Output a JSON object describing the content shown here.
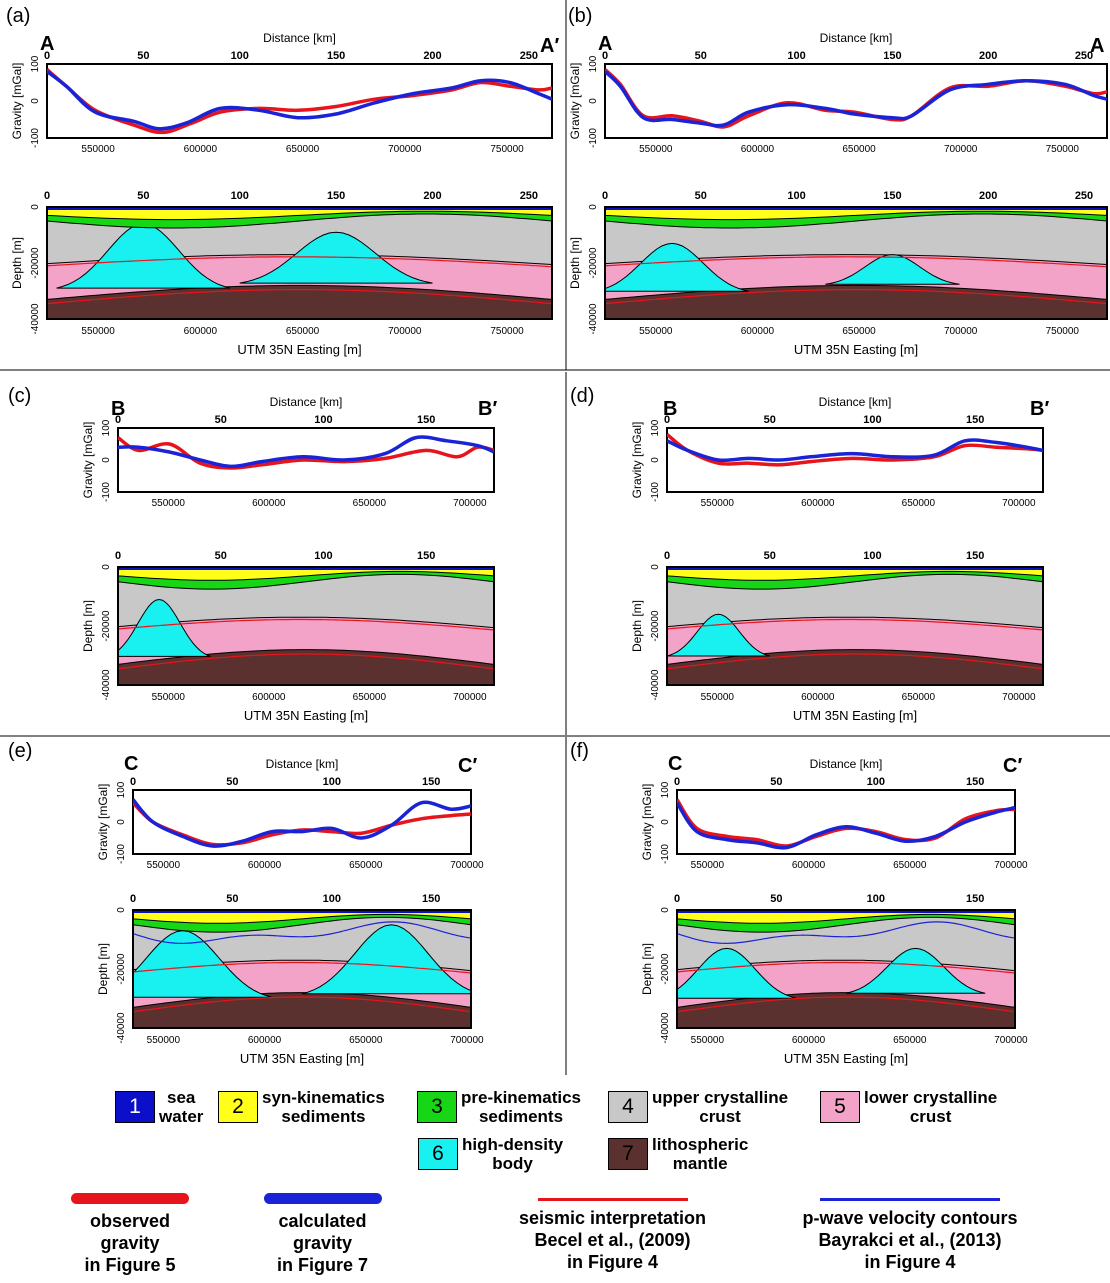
{
  "labels": {
    "distance_axis": "Distance [km]",
    "gravity_axis": "Gravity [mGal]",
    "depth_axis": "Depth [m]",
    "easting_axis": "UTM 35N Easting [m]"
  },
  "colors": {
    "observed": "#e8141b",
    "calculated": "#1a23d6",
    "seismic": "#e8141b",
    "pwave": "#1a23d6",
    "sea_water": "#0b0fc9",
    "syn_kinematics": "#ffff1a",
    "pre_kinematics": "#16d616",
    "upper_crust": "#c8c8c8",
    "lower_crust": "#f4a3c8",
    "high_density": "#19f0f0",
    "mantle": "#5b3130"
  },
  "legend": {
    "units": [
      {
        "num": "1",
        "label": "sea\nwater",
        "color": "#0b0fc9",
        "numcolor": "#ffffff"
      },
      {
        "num": "2",
        "label": "syn-kinematics\nsediments",
        "color": "#ffff1a",
        "numcolor": "#000000"
      },
      {
        "num": "3",
        "label": "pre-kinematics\nsediments",
        "color": "#16d616",
        "numcolor": "#000000"
      },
      {
        "num": "4",
        "label": "upper crystalline\ncrust",
        "color": "#c8c8c8",
        "numcolor": "#000000"
      },
      {
        "num": "5",
        "label": "lower crystalline\ncrust",
        "color": "#f4a3c8",
        "numcolor": "#000000"
      },
      {
        "num": "6",
        "label": "high-density\nbody",
        "color": "#19f0f0",
        "numcolor": "#000000"
      },
      {
        "num": "7",
        "label": "lithospheric\nmantle",
        "color": "#5b3130",
        "numcolor": "#000000"
      }
    ],
    "lines": [
      {
        "label": "observed\ngravity\nin Figure 5",
        "color": "#e8141b",
        "thick": true
      },
      {
        "label": "calculated\ngravity\nin Figure 7",
        "color": "#1a23d6",
        "thick": true
      },
      {
        "label": "seismic interpretation\nBecel et al., (2009)\nin Figure 4",
        "color": "#e8141b",
        "thick": false
      },
      {
        "label": "p-wave velocity contours\nBayrakci et al., (2013)\nin Figure 4",
        "color": "#1a23d6",
        "thick": false
      }
    ]
  },
  "chart_data": [
    {
      "panel": "(a)",
      "type": "line",
      "start_label": "A",
      "end_label": "A′",
      "distance_ticks": [
        0,
        50,
        100,
        150,
        200,
        250
      ],
      "distance_max": 262,
      "easting_min": 525000,
      "easting_max": 772000,
      "easting_ticks": [
        550000,
        600000,
        650000,
        700000,
        750000
      ],
      "gravity_ylim": [
        -100,
        100
      ],
      "gravity_ticks": [
        100,
        0,
        -100
      ],
      "depth_ticks": [
        0,
        -20000,
        -40000
      ],
      "observed": [
        [
          0,
          85
        ],
        [
          10,
          40
        ],
        [
          25,
          -25
        ],
        [
          45,
          -65
        ],
        [
          60,
          -85
        ],
        [
          75,
          -60
        ],
        [
          90,
          -30
        ],
        [
          110,
          -20
        ],
        [
          130,
          -25
        ],
        [
          150,
          -15
        ],
        [
          170,
          5
        ],
        [
          190,
          15
        ],
        [
          210,
          30
        ],
        [
          225,
          50
        ],
        [
          240,
          40
        ],
        [
          255,
          30
        ],
        [
          262,
          35
        ]
      ],
      "calculated": [
        [
          0,
          80
        ],
        [
          10,
          40
        ],
        [
          25,
          -30
        ],
        [
          45,
          -55
        ],
        [
          58,
          -75
        ],
        [
          72,
          -60
        ],
        [
          90,
          -20
        ],
        [
          110,
          -25
        ],
        [
          130,
          -45
        ],
        [
          150,
          -35
        ],
        [
          170,
          -5
        ],
        [
          190,
          20
        ],
        [
          210,
          35
        ],
        [
          225,
          55
        ],
        [
          240,
          50
        ],
        [
          255,
          20
        ],
        [
          262,
          5
        ]
      ],
      "domes": [
        {
          "center": 50,
          "halfwidth": 45,
          "top": -6000
        },
        {
          "center": 150,
          "halfwidth": 50,
          "top": -9000
        }
      ],
      "pwave": false
    },
    {
      "panel": "(b)",
      "type": "line",
      "start_label": "A",
      "end_label": "A",
      "distance_ticks": [
        0,
        50,
        100,
        150,
        200,
        250
      ],
      "distance_max": 262,
      "easting_min": 525000,
      "easting_max": 772000,
      "easting_ticks": [
        550000,
        600000,
        650000,
        700000,
        750000
      ],
      "gravity_ylim": [
        -100,
        100
      ],
      "gravity_ticks": [
        100,
        0,
        -100
      ],
      "depth_ticks": [
        0,
        -20000,
        -40000
      ],
      "observed": [
        [
          0,
          85
        ],
        [
          8,
          45
        ],
        [
          20,
          -40
        ],
        [
          35,
          -40
        ],
        [
          50,
          -55
        ],
        [
          62,
          -70
        ],
        [
          75,
          -40
        ],
        [
          95,
          -5
        ],
        [
          115,
          -25
        ],
        [
          130,
          -30
        ],
        [
          150,
          -50
        ],
        [
          160,
          -40
        ],
        [
          180,
          35
        ],
        [
          200,
          40
        ],
        [
          220,
          55
        ],
        [
          240,
          40
        ],
        [
          255,
          20
        ],
        [
          262,
          25
        ]
      ],
      "calculated": [
        [
          0,
          80
        ],
        [
          8,
          40
        ],
        [
          20,
          -45
        ],
        [
          35,
          -50
        ],
        [
          50,
          -60
        ],
        [
          62,
          -65
        ],
        [
          75,
          -30
        ],
        [
          95,
          -10
        ],
        [
          115,
          -20
        ],
        [
          130,
          -35
        ],
        [
          150,
          -45
        ],
        [
          160,
          -40
        ],
        [
          180,
          30
        ],
        [
          200,
          45
        ],
        [
          220,
          55
        ],
        [
          240,
          45
        ],
        [
          255,
          15
        ],
        [
          262,
          5
        ]
      ],
      "domes": [
        {
          "center": 35,
          "halfwidth": 40,
          "top": -13000
        },
        {
          "center": 150,
          "halfwidth": 35,
          "top": -17000
        }
      ],
      "pwave": false
    },
    {
      "panel": "(c)",
      "type": "line",
      "start_label": "B",
      "end_label": "B′",
      "distance_ticks": [
        0,
        50,
        100,
        150
      ],
      "distance_max": 183,
      "easting_min": 525000,
      "easting_max": 712000,
      "easting_ticks": [
        550000,
        600000,
        650000,
        700000
      ],
      "gravity_ylim": [
        -100,
        100
      ],
      "gravity_ticks": [
        100,
        0,
        -100
      ],
      "depth_ticks": [
        0,
        -20000,
        -40000
      ],
      "observed": [
        [
          0,
          70
        ],
        [
          10,
          30
        ],
        [
          25,
          50
        ],
        [
          40,
          -10
        ],
        [
          55,
          -25
        ],
        [
          70,
          -15
        ],
        [
          90,
          0
        ],
        [
          110,
          -5
        ],
        [
          130,
          5
        ],
        [
          150,
          30
        ],
        [
          165,
          10
        ],
        [
          175,
          40
        ],
        [
          183,
          30
        ]
      ],
      "calculated": [
        [
          0,
          40
        ],
        [
          10,
          40
        ],
        [
          25,
          25
        ],
        [
          40,
          0
        ],
        [
          55,
          -20
        ],
        [
          70,
          -5
        ],
        [
          90,
          10
        ],
        [
          110,
          0
        ],
        [
          130,
          20
        ],
        [
          145,
          70
        ],
        [
          160,
          60
        ],
        [
          175,
          45
        ],
        [
          183,
          25
        ]
      ],
      "domes": [
        {
          "center": 20,
          "halfwidth": 25,
          "top": -11000
        }
      ],
      "pwave": false
    },
    {
      "panel": "(d)",
      "type": "line",
      "start_label": "B",
      "end_label": "B′",
      "distance_ticks": [
        0,
        50,
        100,
        150
      ],
      "distance_max": 183,
      "easting_min": 525000,
      "easting_max": 712000,
      "easting_ticks": [
        550000,
        600000,
        650000,
        700000
      ],
      "gravity_ylim": [
        -100,
        100
      ],
      "gravity_ticks": [
        100,
        0,
        -100
      ],
      "depth_ticks": [
        0,
        -20000,
        -40000
      ],
      "observed": [
        [
          0,
          80
        ],
        [
          10,
          30
        ],
        [
          25,
          -10
        ],
        [
          40,
          -10
        ],
        [
          55,
          -15
        ],
        [
          70,
          -5
        ],
        [
          90,
          5
        ],
        [
          110,
          0
        ],
        [
          130,
          10
        ],
        [
          145,
          45
        ],
        [
          160,
          40
        ],
        [
          175,
          35
        ],
        [
          183,
          30
        ]
      ],
      "calculated": [
        [
          0,
          60
        ],
        [
          10,
          30
        ],
        [
          25,
          0
        ],
        [
          40,
          5
        ],
        [
          55,
          0
        ],
        [
          70,
          10
        ],
        [
          90,
          20
        ],
        [
          110,
          10
        ],
        [
          130,
          15
        ],
        [
          145,
          60
        ],
        [
          160,
          55
        ],
        [
          175,
          40
        ],
        [
          183,
          30
        ]
      ],
      "domes": [
        {
          "center": 25,
          "halfwidth": 25,
          "top": -16000
        }
      ],
      "pwave": false
    },
    {
      "panel": "(e)",
      "type": "line",
      "start_label": "C",
      "end_label": "C′",
      "distance_ticks": [
        0,
        50,
        100,
        150
      ],
      "distance_max": 170,
      "easting_min": 535000,
      "easting_max": 702000,
      "easting_ticks": [
        550000,
        600000,
        650000,
        700000
      ],
      "gravity_ylim": [
        -100,
        100
      ],
      "gravity_ticks": [
        100,
        0,
        -100
      ],
      "depth_ticks": [
        0,
        -20000,
        -40000
      ],
      "observed": [
        [
          0,
          60
        ],
        [
          10,
          0
        ],
        [
          25,
          -40
        ],
        [
          40,
          -70
        ],
        [
          55,
          -65
        ],
        [
          70,
          -40
        ],
        [
          85,
          -25
        ],
        [
          100,
          -30
        ],
        [
          115,
          -35
        ],
        [
          130,
          -10
        ],
        [
          145,
          10
        ],
        [
          160,
          20
        ],
        [
          170,
          25
        ]
      ],
      "calculated": [
        [
          0,
          70
        ],
        [
          10,
          0
        ],
        [
          25,
          -45
        ],
        [
          40,
          -75
        ],
        [
          55,
          -60
        ],
        [
          70,
          -30
        ],
        [
          85,
          -30
        ],
        [
          100,
          -20
        ],
        [
          115,
          -50
        ],
        [
          130,
          -10
        ],
        [
          145,
          60
        ],
        [
          160,
          40
        ],
        [
          170,
          50
        ]
      ],
      "domes": [
        {
          "center": 25,
          "halfwidth": 45,
          "top": -7000
        },
        {
          "center": 130,
          "halfwidth": 45,
          "top": -5000
        }
      ],
      "pwave": true
    },
    {
      "panel": "(f)",
      "type": "line",
      "start_label": "C",
      "end_label": "C′",
      "distance_ticks": [
        0,
        50,
        100,
        150
      ],
      "distance_max": 170,
      "easting_min": 535000,
      "easting_max": 702000,
      "easting_ticks": [
        550000,
        600000,
        650000,
        700000
      ],
      "gravity_ylim": [
        -100,
        100
      ],
      "gravity_ticks": [
        100,
        0,
        -100
      ],
      "depth_ticks": [
        0,
        -20000,
        -40000
      ],
      "observed": [
        [
          0,
          70
        ],
        [
          10,
          -20
        ],
        [
          25,
          -45
        ],
        [
          40,
          -55
        ],
        [
          55,
          -75
        ],
        [
          70,
          -45
        ],
        [
          85,
          -20
        ],
        [
          100,
          -30
        ],
        [
          115,
          -55
        ],
        [
          130,
          -50
        ],
        [
          145,
          10
        ],
        [
          160,
          35
        ],
        [
          170,
          40
        ]
      ],
      "calculated": [
        [
          0,
          60
        ],
        [
          10,
          -30
        ],
        [
          25,
          -55
        ],
        [
          40,
          -65
        ],
        [
          55,
          -80
        ],
        [
          70,
          -40
        ],
        [
          85,
          -15
        ],
        [
          100,
          -35
        ],
        [
          115,
          -60
        ],
        [
          130,
          -45
        ],
        [
          145,
          0
        ],
        [
          160,
          30
        ],
        [
          170,
          45
        ]
      ],
      "domes": [
        {
          "center": 25,
          "halfwidth": 35,
          "top": -13000
        },
        {
          "center": 120,
          "halfwidth": 35,
          "top": -13000
        }
      ],
      "pwave": true
    }
  ]
}
